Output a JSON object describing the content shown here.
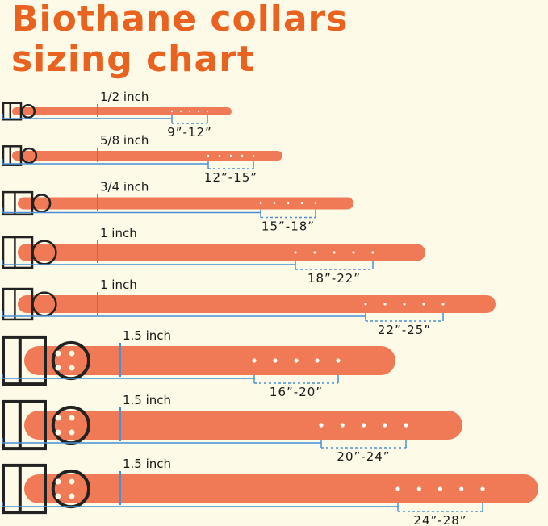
{
  "title": [
    "Biothane collars",
    "sizing chart"
  ],
  "collars": [
    {
      "width": "1/2 inch",
      "size": "9”-12”"
    },
    {
      "width": "5/8 inch",
      "size": "12”-15”"
    },
    {
      "width": "3/4 inch",
      "size": "15”-18”"
    },
    {
      "width": "1 inch",
      "size": "18”-22”"
    },
    {
      "width": "1 inch",
      "size": "22”-25”"
    },
    {
      "width": "1.5 inch",
      "size": "16”-20”"
    },
    {
      "width": "1.5 inch",
      "size": "20”-24”"
    },
    {
      "width": "1.5 inch",
      "size": "24”-28”"
    }
  ]
}
